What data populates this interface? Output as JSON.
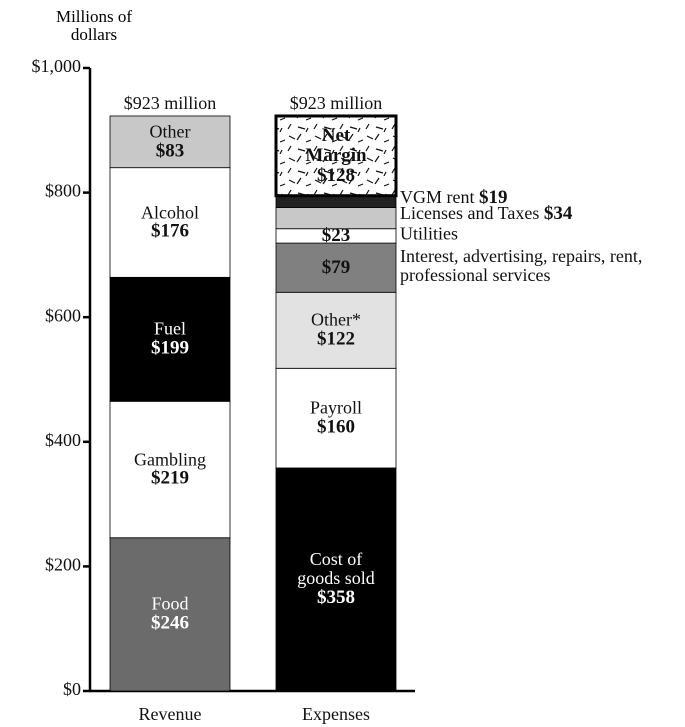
{
  "chart_data": {
    "type": "stacked_bar",
    "y_label": "Millions of dollars",
    "ylim": [
      0,
      1000
    ],
    "yticks": [
      {
        "value": 0,
        "label": "$0"
      },
      {
        "value": 200,
        "label": "$200"
      },
      {
        "value": 400,
        "label": "$400"
      },
      {
        "value": 600,
        "label": "$600"
      },
      {
        "value": 800,
        "label": "$800"
      },
      {
        "value": 1000,
        "label": "$1,000"
      }
    ],
    "bars": [
      {
        "category": "Revenue",
        "total_label": "$923 million",
        "segments": [
          {
            "name": "Food",
            "value": 246,
            "value_label": "$246",
            "color": "#6b6b6b",
            "label": "inside"
          },
          {
            "name": "Gambling",
            "value": 219,
            "value_label": "$219",
            "color": "#ffffff",
            "label": "inside"
          },
          {
            "name": "Fuel",
            "value": 199,
            "value_label": "$199",
            "color": "#000000",
            "label": "inside"
          },
          {
            "name": "Alcohol",
            "value": 176,
            "value_label": "$176",
            "color": "#ffffff",
            "label": "inside"
          },
          {
            "name": "Other",
            "value": 83,
            "value_label": "$83",
            "color": "#c8c8c8",
            "label": "inside"
          }
        ]
      },
      {
        "category": "Expenses",
        "total_label": "$923 million",
        "segments": [
          {
            "name": "Cost of goods sold",
            "value": 358,
            "value_label": "$358",
            "color": "#000000",
            "label": "inside"
          },
          {
            "name": "Payroll",
            "value": 160,
            "value_label": "$160",
            "color": "#ffffff",
            "label": "inside"
          },
          {
            "name": "Other*",
            "value": 122,
            "value_label": "$122",
            "color": "#e2e2e2",
            "label": "inside"
          },
          {
            "name": "Interest, advertising, repairs, rent, professional services",
            "value": 79,
            "value_label": "$79",
            "color": "#808080",
            "label": "split"
          },
          {
            "name": "Utilities",
            "value": 23,
            "value_label": "$23",
            "color": "#ffffff",
            "label": "split"
          },
          {
            "name": "Licenses and Taxes",
            "value": 34,
            "value_label": "$34",
            "color": "#c8c8c8",
            "label": "outside"
          },
          {
            "name": "VGM rent",
            "value": 19,
            "value_label": "$19",
            "color": "#222222",
            "label": "outside"
          },
          {
            "name": "Net Margin",
            "value": 128,
            "value_label": "$128",
            "color": "#ffffff",
            "label": "inside",
            "hatch": true
          }
        ]
      }
    ]
  }
}
